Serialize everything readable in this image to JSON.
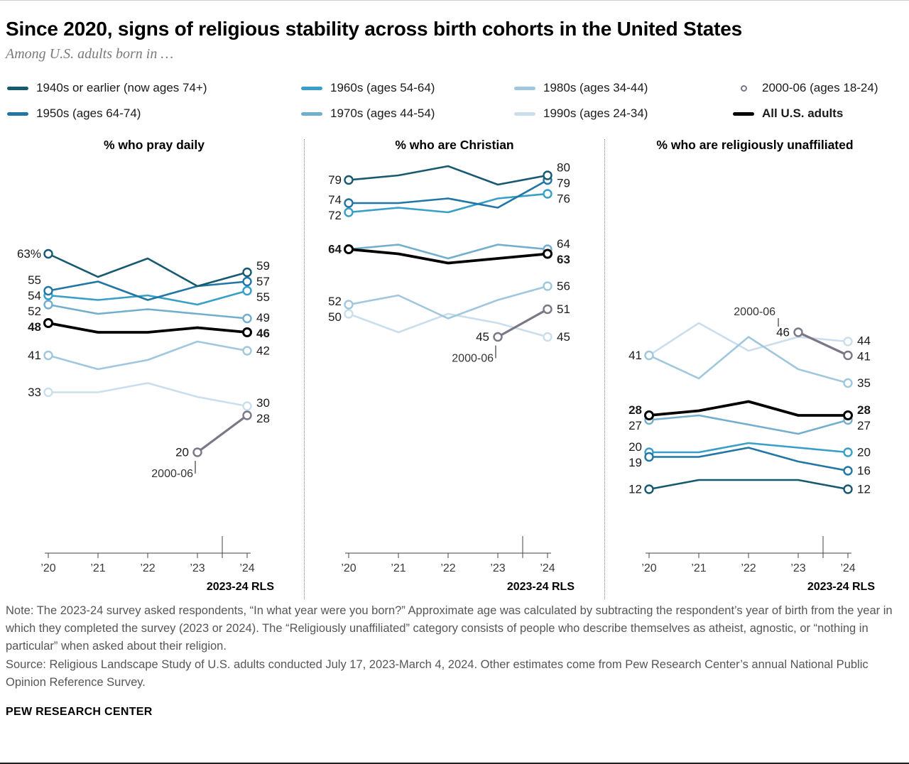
{
  "header": {
    "title": "Since 2020, signs of religious stability across birth cohorts in the United States",
    "subtitle": "Among U.S. adults born in …"
  },
  "legend": {
    "items": [
      {
        "label": "1940s or earlier (now ages 74+)",
        "swatch": "line",
        "color": "#175970",
        "bold": false
      },
      {
        "label": "1950s (ages 64-74)",
        "swatch": "line",
        "color": "#2176a5",
        "bold": false
      },
      {
        "label": "1960s (ages 54-64)",
        "swatch": "line",
        "color": "#379fc8",
        "bold": false
      },
      {
        "label": "1970s (ages 44-54)",
        "swatch": "line",
        "color": "#72afce",
        "bold": false
      },
      {
        "label": "1980s (ages 34-44)",
        "swatch": "line",
        "color": "#a0c7dd",
        "bold": false
      },
      {
        "label": "1990s (ages 24-34)",
        "swatch": "line",
        "color": "#cbdeec",
        "bold": false
      },
      {
        "label": "2000-06 (ages 18-24)",
        "swatch": "circle",
        "color": "#7c7787",
        "bold": false
      },
      {
        "label": "All U.S. adults",
        "swatch": "line",
        "color": "#000000",
        "bold": true
      }
    ]
  },
  "chart_data": [
    {
      "type": "line",
      "title": "% who pray daily",
      "x": [
        "’20",
        "’21",
        "’22",
        "’23",
        "’24"
      ],
      "axis_note": "2023-24 RLS",
      "ylim": [
        0,
        84
      ],
      "series": [
        {
          "name": "1990s",
          "color": "#cbdeec",
          "values": [
            33,
            33,
            35,
            32,
            30
          ],
          "label_left": "33",
          "label_right": "30"
        },
        {
          "name": "1980s",
          "color": "#a0c7dd",
          "values": [
            41,
            38,
            40,
            44,
            42
          ],
          "label_left": "41",
          "label_right": "42"
        },
        {
          "name": "1970s",
          "color": "#72afce",
          "values": [
            52,
            50,
            51,
            50,
            49
          ],
          "label_left": "52",
          "label_right": "49"
        },
        {
          "name": "1960s",
          "color": "#379fc8",
          "values": [
            54,
            53,
            54,
            52,
            55
          ],
          "label_left": "54",
          "label_right": "55"
        },
        {
          "name": "1950s",
          "color": "#2176a5",
          "values": [
            55,
            57,
            53,
            56,
            57
          ],
          "label_left": "55",
          "label_right": "57"
        },
        {
          "name": "1940s or earlier",
          "color": "#175970",
          "values": [
            63,
            58,
            62,
            56,
            59
          ],
          "label_left": "63%",
          "label_right": "59"
        },
        {
          "name": "2000-06",
          "color": "#7c7787",
          "wide": true,
          "values": [
            null,
            null,
            null,
            20,
            28
          ],
          "label_left": null,
          "label_right": "28",
          "point_label": {
            "index": 3,
            "text": "20"
          },
          "callout": {
            "text": "2000-06",
            "index": 3,
            "placement": "below-left"
          }
        },
        {
          "name": "All U.S. adults",
          "color": "#000000",
          "bold": true,
          "values": [
            48,
            46,
            46,
            47,
            46
          ],
          "label_left": "48",
          "label_right": "46"
        }
      ]
    },
    {
      "type": "line",
      "title": "% who are Christian",
      "x": [
        "’20",
        "’21",
        "’22",
        "’23",
        "’24"
      ],
      "axis_note": "2023-24 RLS",
      "ylim": [
        0,
        84
      ],
      "series": [
        {
          "name": "1990s",
          "color": "#cbdeec",
          "values": [
            50,
            46,
            50,
            48,
            45
          ],
          "label_left": "50",
          "label_right": "45"
        },
        {
          "name": "1980s",
          "color": "#a0c7dd",
          "values": [
            52,
            54,
            49,
            53,
            56
          ],
          "label_left": "52",
          "label_right": "56"
        },
        {
          "name": "1970s",
          "color": "#72afce",
          "values": [
            64,
            65,
            62,
            65,
            64
          ],
          "label_left": null,
          "label_right": "64"
        },
        {
          "name": "1960s",
          "color": "#379fc8",
          "values": [
            72,
            73,
            72,
            75,
            76
          ],
          "label_left": "72",
          "label_right": "76"
        },
        {
          "name": "1950s",
          "color": "#2176a5",
          "values": [
            74,
            74,
            75,
            73,
            79
          ],
          "label_left": "74",
          "label_right": "79"
        },
        {
          "name": "1940s or earlier",
          "color": "#175970",
          "values": [
            79,
            80,
            82,
            78,
            80
          ],
          "label_left": "79",
          "label_right": "80"
        },
        {
          "name": "2000-06",
          "color": "#7c7787",
          "wide": true,
          "values": [
            null,
            null,
            null,
            45,
            51
          ],
          "label_left": null,
          "label_right": "51",
          "point_label": {
            "index": 3,
            "text": "45"
          },
          "callout": {
            "text": "2000-06",
            "index": 3,
            "placement": "below-left"
          }
        },
        {
          "name": "All U.S. adults",
          "color": "#000000",
          "bold": true,
          "values": [
            64,
            63,
            61,
            62,
            63
          ],
          "label_left": "64",
          "label_right": "63"
        }
      ]
    },
    {
      "type": "line",
      "title": "% who are religiously unaffiliated",
      "x": [
        "’20",
        "’21",
        "’22",
        "’23",
        "’24"
      ],
      "axis_note": "2023-24 RLS",
      "ylim": [
        0,
        84
      ],
      "series": [
        {
          "name": "1990s",
          "color": "#cbdeec",
          "values": [
            41,
            48,
            42,
            45,
            44
          ],
          "label_left": null,
          "label_right": "44"
        },
        {
          "name": "1980s",
          "color": "#a0c7dd",
          "values": [
            41,
            36,
            45,
            38,
            35
          ],
          "label_left": "41",
          "label_right": "35"
        },
        {
          "name": "1970s",
          "color": "#72afce",
          "values": [
            27,
            28,
            26,
            24,
            27
          ],
          "label_left": "27",
          "label_right": "27"
        },
        {
          "name": "1960s",
          "color": "#379fc8",
          "values": [
            20,
            20,
            22,
            21,
            20
          ],
          "label_left": "20",
          "label_right": "20"
        },
        {
          "name": "1950s",
          "color": "#2176a5",
          "values": [
            19,
            19,
            21,
            18,
            16
          ],
          "label_left": "19",
          "label_right": "16"
        },
        {
          "name": "1940s or earlier",
          "color": "#175970",
          "values": [
            12,
            14,
            14,
            14,
            12
          ],
          "label_left": "12",
          "label_right": "12"
        },
        {
          "name": "2000-06",
          "color": "#7c7787",
          "wide": true,
          "values": [
            null,
            null,
            null,
            46,
            41
          ],
          "label_left": null,
          "label_right": "41",
          "point_label": {
            "index": 3,
            "text": "46"
          },
          "callout": {
            "text": "2000-06",
            "index": 3,
            "placement": "above-left"
          }
        },
        {
          "name": "All U.S. adults",
          "color": "#000000",
          "bold": true,
          "values": [
            28,
            29,
            31,
            28,
            28
          ],
          "label_left": "28",
          "label_right": "28"
        }
      ]
    }
  ],
  "footer": {
    "note": "Note: The 2023-24 survey asked respondents, “In what year were you born?” Approximate age was calculated by subtracting the respondent’s year of birth from the year in which they completed the survey (2023 or 2024). The “Religiously unaffiliated” category consists of people who describe themselves as atheist, agnostic, or “nothing in particular” when asked about their religion.",
    "source": "Source: Religious Landscape Study of U.S. adults conducted July 17, 2023-March 4, 2024. Other estimates come from Pew Research Center’s annual National Public Opinion Reference Survey.",
    "brand": "PEW RESEARCH CENTER"
  }
}
